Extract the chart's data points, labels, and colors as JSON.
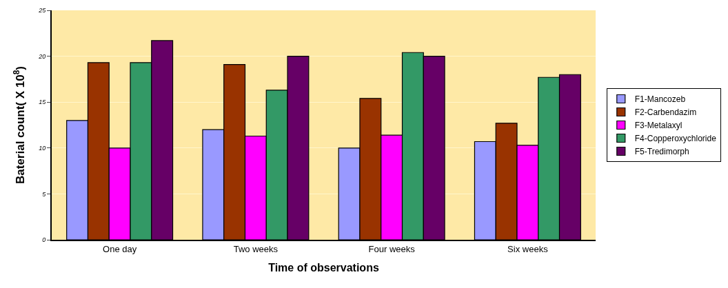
{
  "chart_data": {
    "type": "bar",
    "xlabel": "Time of observations",
    "ylabel": "Baterial count( X 10$^{8}$)",
    "categories": [
      "One day",
      "Two weeks",
      "Four weeks",
      "Six weeks"
    ],
    "series": [
      {
        "name": "F1-Mancozeb",
        "color": "#9999ff",
        "values": [
          13,
          12,
          10,
          10.7
        ]
      },
      {
        "name": "F2-Carbendazim",
        "color": "#993300",
        "values": [
          19.3,
          19.1,
          15.4,
          12.7
        ]
      },
      {
        "name": "F3-Metalaxyl",
        "color": "#ff00ff",
        "values": [
          10,
          11.3,
          11.4,
          10.3
        ]
      },
      {
        "name": "F4-Copperoxychloride",
        "color": "#339966",
        "values": [
          19.3,
          16.3,
          20.4,
          17.7
        ]
      },
      {
        "name": "F5-Tredimorph",
        "color": "#660066",
        "values": [
          21.7,
          20,
          20,
          18
        ]
      }
    ],
    "ylim": [
      0,
      25
    ],
    "yticks": [
      0,
      5,
      10,
      15,
      20,
      25
    ],
    "grid": "y",
    "legend": "right"
  }
}
